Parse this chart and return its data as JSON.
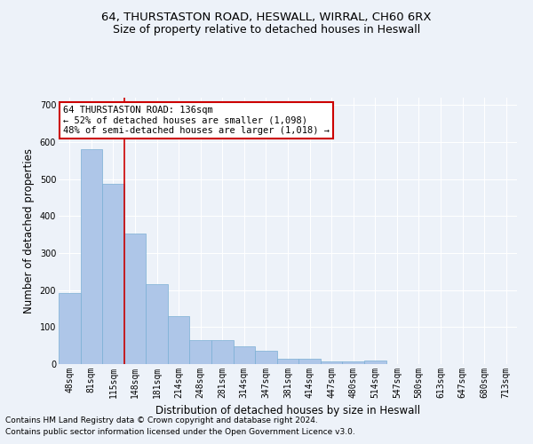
{
  "title1": "64, THURSTASTON ROAD, HESWALL, WIRRAL, CH60 6RX",
  "title2": "Size of property relative to detached houses in Heswall",
  "xlabel": "Distribution of detached houses by size in Heswall",
  "ylabel": "Number of detached properties",
  "footnote1": "Contains HM Land Registry data © Crown copyright and database right 2024.",
  "footnote2": "Contains public sector information licensed under the Open Government Licence v3.0.",
  "bar_labels": [
    "48sqm",
    "81sqm",
    "115sqm",
    "148sqm",
    "181sqm",
    "214sqm",
    "248sqm",
    "281sqm",
    "314sqm",
    "347sqm",
    "381sqm",
    "414sqm",
    "447sqm",
    "480sqm",
    "514sqm",
    "547sqm",
    "580sqm",
    "613sqm",
    "647sqm",
    "680sqm",
    "713sqm"
  ],
  "bar_values": [
    193,
    580,
    487,
    354,
    215,
    130,
    65,
    65,
    48,
    35,
    15,
    15,
    8,
    8,
    10,
    0,
    0,
    0,
    0,
    0,
    0
  ],
  "bar_color": "#aec6e8",
  "bar_edge_color": "#7aafd4",
  "annotation_text": "64 THURSTASTON ROAD: 136sqm\n← 52% of detached houses are smaller (1,098)\n48% of semi-detached houses are larger (1,018) →",
  "annotation_box_color": "#ffffff",
  "annotation_box_edge": "#cc0000",
  "vline_color": "#cc0000",
  "vline_x": 2.5,
  "ylim": [
    0,
    720
  ],
  "yticks": [
    0,
    100,
    200,
    300,
    400,
    500,
    600,
    700
  ],
  "background_color": "#edf2f9",
  "grid_color": "#ffffff",
  "title1_fontsize": 9.5,
  "title2_fontsize": 9,
  "ylabel_fontsize": 8.5,
  "xlabel_fontsize": 8.5,
  "tick_fontsize": 7,
  "footnote_fontsize": 6.5
}
